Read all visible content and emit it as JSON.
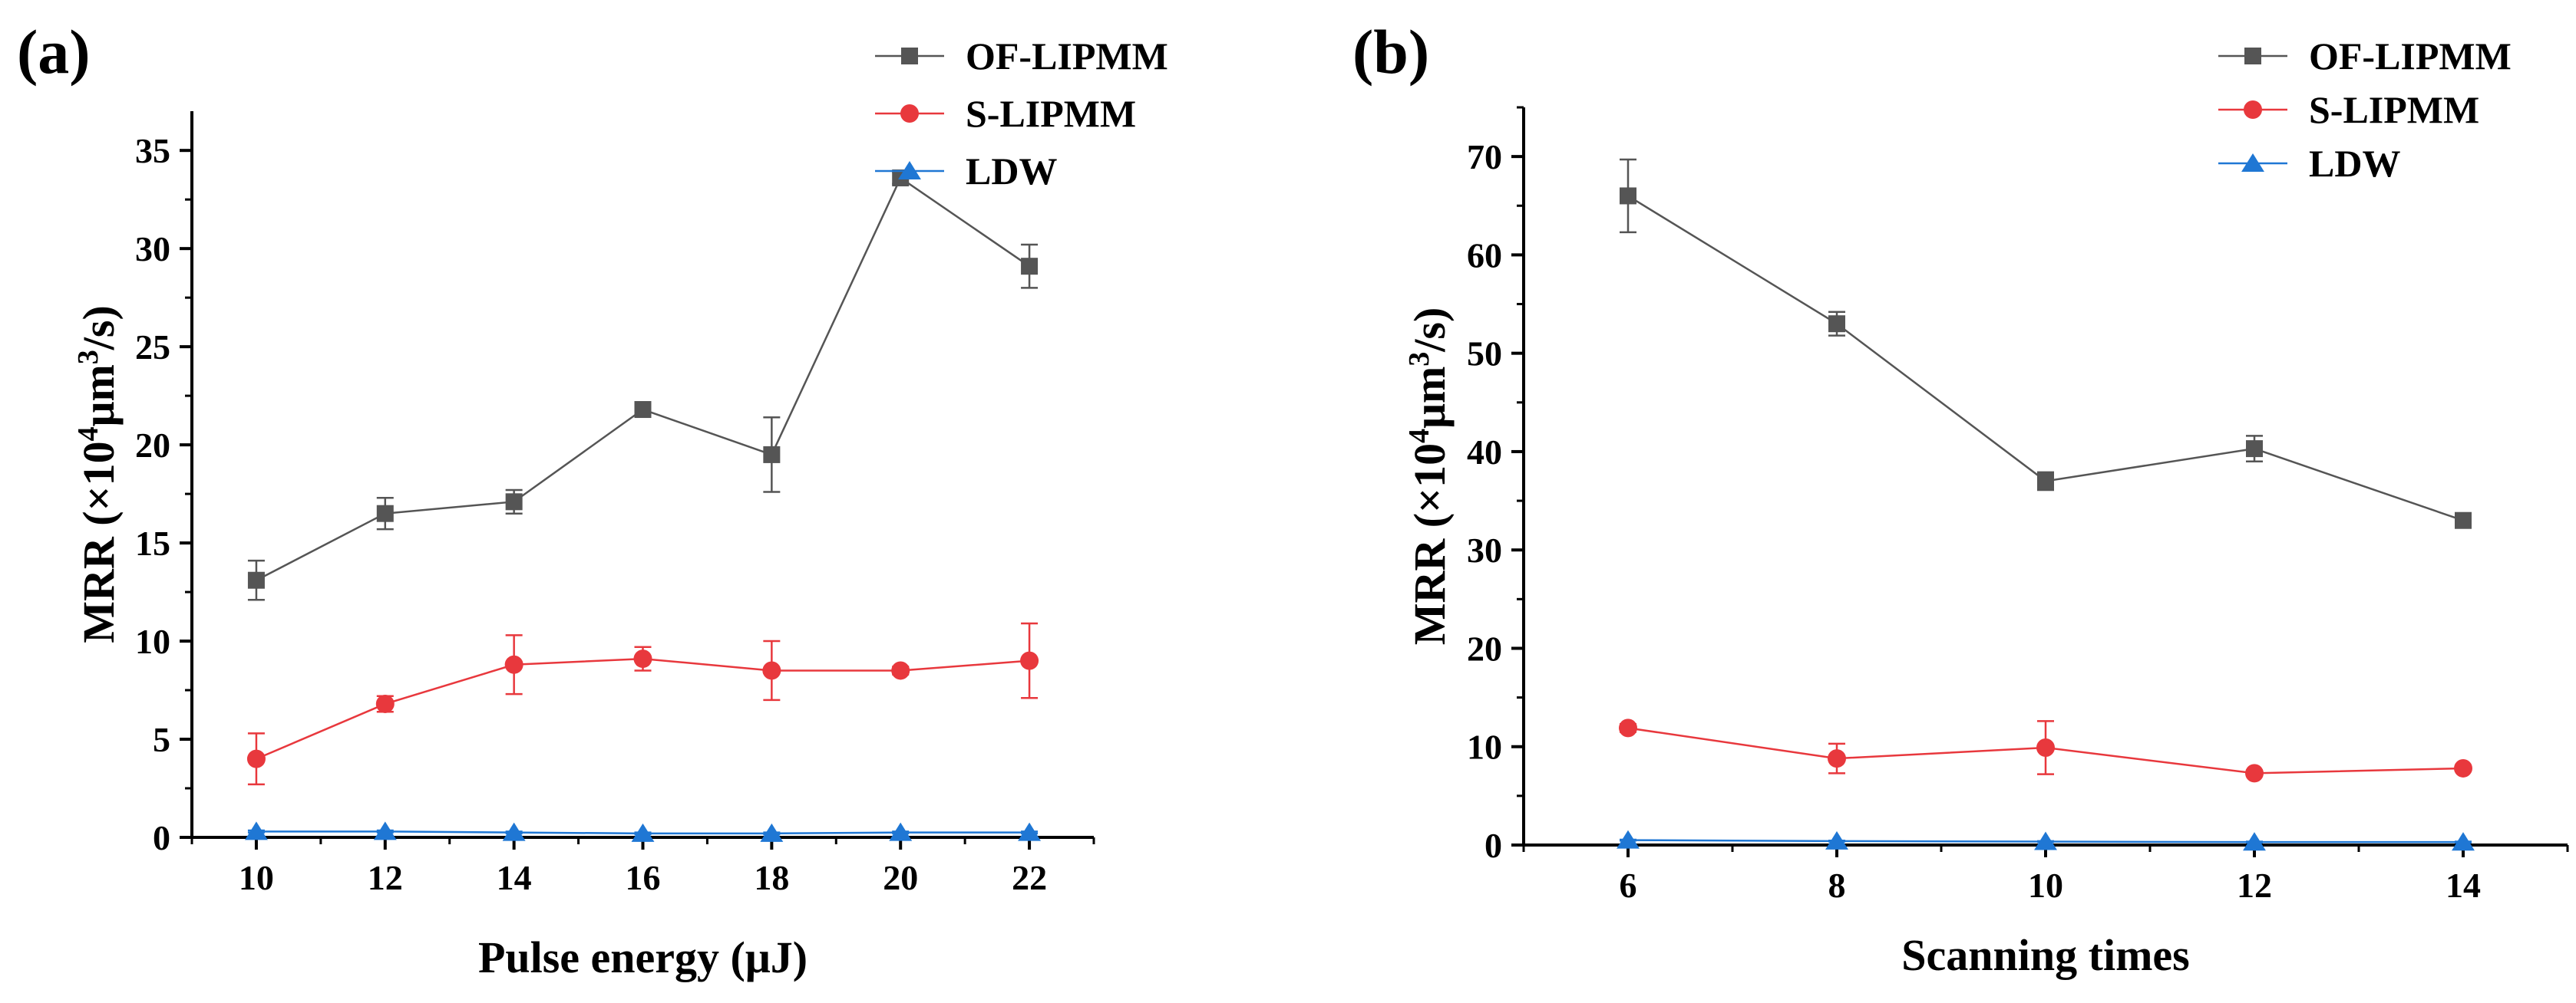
{
  "chart_data": [
    {
      "panel_label": "(a)",
      "type": "line",
      "xlabel": "Pulse energy (μJ)",
      "ylabel": {
        "main": "MRR (×10",
        "sup1": "4",
        "mid": "μm",
        "sup2": "3",
        "end": "/s)"
      },
      "x": [
        10,
        12,
        14,
        16,
        18,
        20,
        22
      ],
      "xticks": [
        "10",
        "12",
        "14",
        "16",
        "18",
        "20",
        "22"
      ],
      "xlim": [
        9,
        23
      ],
      "yticks": [
        "0",
        "5",
        "10",
        "15",
        "20",
        "25",
        "30",
        "35"
      ],
      "ylim": [
        0,
        37
      ],
      "series": [
        {
          "name": "OF-LIPMM",
          "color": "#555555",
          "marker": "square",
          "values": [
            13.1,
            16.5,
            17.1,
            21.8,
            19.5,
            33.6,
            29.1
          ],
          "errors": [
            1.0,
            0.8,
            0.6,
            0.25,
            1.9,
            0.3,
            1.1
          ]
        },
        {
          "name": "S-LIPMM",
          "color": "#e8383d",
          "marker": "circle",
          "values": [
            4.0,
            6.8,
            8.8,
            9.1,
            8.5,
            8.5,
            9.0
          ],
          "errors": [
            1.3,
            0.4,
            1.5,
            0.6,
            1.5,
            0.2,
            1.9
          ]
        },
        {
          "name": "LDW",
          "color": "#1f77d4",
          "marker": "triangle",
          "values": [
            0.3,
            0.3,
            0.25,
            0.2,
            0.2,
            0.25,
            0.25
          ],
          "errors": [
            0.05,
            0.05,
            0.05,
            0.05,
            0.05,
            0.05,
            0.05
          ]
        }
      ],
      "legend_position": "top-right"
    },
    {
      "panel_label": "(b)",
      "type": "line",
      "xlabel": "Scanning times",
      "ylabel": {
        "main": "MRR (×10",
        "sup1": "4",
        "mid": "μm",
        "sup2": "3",
        "end": "/s)"
      },
      "x": [
        6,
        8,
        10,
        12,
        14
      ],
      "xticks": [
        "6",
        "8",
        "10",
        "12",
        "14"
      ],
      "xlim": [
        5,
        15
      ],
      "yticks": [
        "0",
        "10",
        "20",
        "30",
        "40",
        "50",
        "60",
        "70"
      ],
      "ylim": [
        0,
        75
      ],
      "series": [
        {
          "name": "OF-LIPMM",
          "color": "#555555",
          "marker": "square",
          "values": [
            66.0,
            53.0,
            37.0,
            40.3,
            33.0
          ],
          "errors": [
            3.7,
            1.2,
            0.9,
            1.3,
            0.4
          ]
        },
        {
          "name": "S-LIPMM",
          "color": "#e8383d",
          "marker": "circle",
          "values": [
            11.9,
            8.8,
            9.9,
            7.3,
            7.8
          ],
          "errors": [
            0.4,
            1.5,
            2.7,
            0.3,
            0.3
          ]
        },
        {
          "name": "LDW",
          "color": "#1f77d4",
          "marker": "triangle",
          "values": [
            0.5,
            0.4,
            0.35,
            0.3,
            0.3
          ],
          "errors": [
            0.05,
            0.05,
            0.05,
            0.05,
            0.05
          ]
        }
      ],
      "legend_position": "top-right"
    }
  ]
}
